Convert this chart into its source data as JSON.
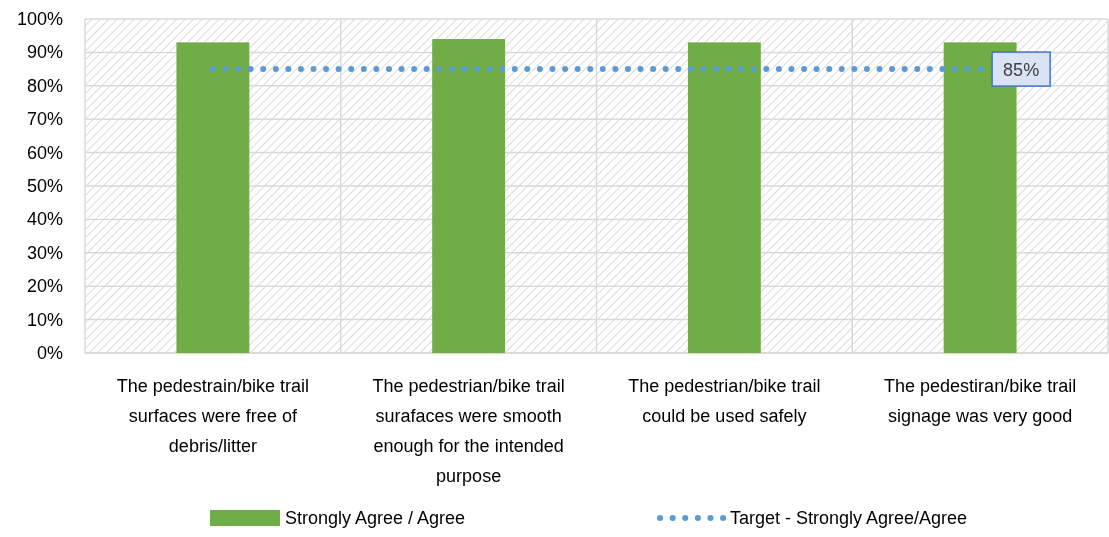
{
  "chart_data": {
    "type": "bar",
    "categories": [
      "The pedestrain/bike trail surfaces were free of debris/litter",
      "The pedestrian/bike trail surafaces were smooth enough for the intended purpose",
      "The pedestrian/bike trail could be used safely",
      "The pedestiran/bike trail signage was very good"
    ],
    "series": [
      {
        "name": "Strongly Agree / Agree",
        "color": "#70ad47",
        "values": [
          93,
          94,
          93,
          93
        ]
      },
      {
        "name": "Target - Strongly Agree/Agree",
        "type": "line",
        "color": "#5b9bd5",
        "line_style": "dotted",
        "marker": "none",
        "values": [
          85,
          85,
          85,
          85
        ],
        "value_labels": [
          null,
          null,
          null,
          "85%"
        ]
      }
    ],
    "ylim": [
      0,
      100
    ],
    "yticks": [
      {
        "value": 0,
        "label": "0%"
      },
      {
        "value": 10,
        "label": "10%"
      },
      {
        "value": 20,
        "label": "20%"
      },
      {
        "value": 30,
        "label": "30%"
      },
      {
        "value": 40,
        "label": "40%"
      },
      {
        "value": 50,
        "label": "50%"
      },
      {
        "value": 60,
        "label": "60%"
      },
      {
        "value": 70,
        "label": "70%"
      },
      {
        "value": 80,
        "label": "80%"
      },
      {
        "value": 90,
        "label": "90%"
      },
      {
        "value": 100,
        "label": "100%"
      }
    ],
    "grid": true,
    "legend": "bottom"
  }
}
